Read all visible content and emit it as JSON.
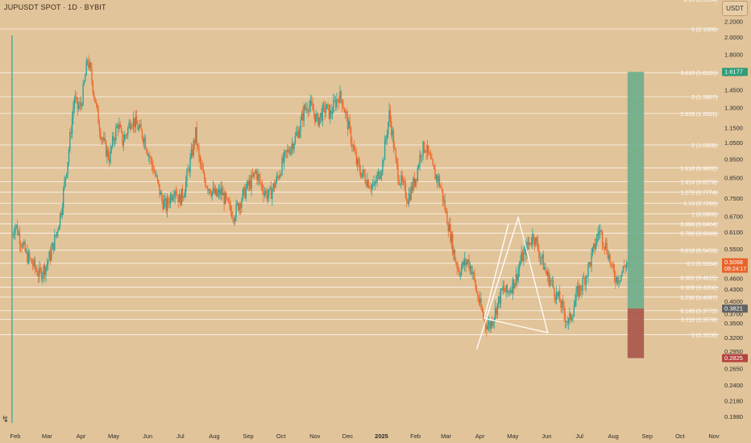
{
  "title": "JUPUSDT SPOT · 1D · BYBIT",
  "currency_button": "USDT",
  "chart_data": {
    "type": "candlestick",
    "title": "JUPUSDT SPOT · 1D · BYBIT",
    "y_scale": "log",
    "ylim": [
      0.185,
      2.6
    ],
    "price_ticks": [
      "2.2000",
      "2.0000",
      "1.8000",
      "1.6000",
      "1.4500",
      "1.3000",
      "1.1500",
      "1.0500",
      "0.9500",
      "0.8500",
      "0.7500",
      "0.6700",
      "0.6100",
      "0.5500",
      "0.5000",
      "0.4600",
      "0.4300",
      "0.4000",
      "0.3700",
      "0.3500",
      "0.3200",
      "0.2950",
      "0.2650",
      "0.2400",
      "0.2180",
      "0.1980"
    ],
    "time_ticks": [
      "Feb",
      "Mar",
      "Apr",
      "May",
      "Jun",
      "Jul",
      "Aug",
      "Sep",
      "Oct",
      "Nov",
      "Dec",
      "2025",
      "Feb",
      "Mar",
      "Apr",
      "May",
      "Jun",
      "Jul",
      "Aug",
      "Sep",
      "Oct",
      "Nov"
    ],
    "time_tick_days": [
      0,
      29,
      60,
      90,
      121,
      151,
      182,
      213,
      243,
      274,
      304,
      335,
      366,
      394,
      425,
      455,
      486,
      516,
      547,
      578,
      608,
      639
    ],
    "price_path": [
      [
        -3,
        0.6
      ],
      [
        0,
        0.64
      ],
      [
        4,
        0.59
      ],
      [
        10,
        0.53
      ],
      [
        16,
        0.5
      ],
      [
        22,
        0.47
      ],
      [
        28,
        0.495
      ],
      [
        33,
        0.54
      ],
      [
        38,
        0.61
      ],
      [
        42,
        0.7
      ],
      [
        45,
        0.82
      ],
      [
        48,
        0.95
      ],
      [
        51,
        1.15
      ],
      [
        54,
        1.38
      ],
      [
        57,
        1.3
      ],
      [
        60,
        1.32
      ],
      [
        63,
        1.5
      ],
      [
        66,
        1.75
      ],
      [
        69,
        1.6
      ],
      [
        72,
        1.42
      ],
      [
        75,
        1.25
      ],
      [
        78,
        1.12
      ],
      [
        82,
        1.02
      ],
      [
        86,
        0.96
      ],
      [
        90,
        1.08
      ],
      [
        94,
        1.18
      ],
      [
        98,
        1.06
      ],
      [
        102,
        1.12
      ],
      [
        106,
        1.22
      ],
      [
        110,
        1.18
      ],
      [
        114,
        1.13
      ],
      [
        118,
        1.08
      ],
      [
        122,
        0.98
      ],
      [
        126,
        0.9
      ],
      [
        130,
        0.82
      ],
      [
        134,
        0.74
      ],
      [
        138,
        0.71
      ],
      [
        142,
        0.76
      ],
      [
        146,
        0.8
      ],
      [
        150,
        0.74
      ],
      [
        154,
        0.78
      ],
      [
        158,
        0.88
      ],
      [
        162,
        1.0
      ],
      [
        165,
        1.11
      ],
      [
        168,
        0.95
      ],
      [
        172,
        0.85
      ],
      [
        176,
        0.81
      ],
      [
        180,
        0.78
      ],
      [
        184,
        0.76
      ],
      [
        188,
        0.78
      ],
      [
        192,
        0.74
      ],
      [
        196,
        0.7
      ],
      [
        200,
        0.68
      ],
      [
        204,
        0.72
      ],
      [
        208,
        0.76
      ],
      [
        212,
        0.8
      ],
      [
        216,
        0.83
      ],
      [
        220,
        0.88
      ],
      [
        224,
        0.82
      ],
      [
        228,
        0.78
      ],
      [
        232,
        0.76
      ],
      [
        236,
        0.8
      ],
      [
        240,
        0.85
      ],
      [
        244,
        0.92
      ],
      [
        248,
        0.98
      ],
      [
        252,
        1.03
      ],
      [
        256,
        1.08
      ],
      [
        260,
        1.15
      ],
      [
        264,
        1.28
      ],
      [
        268,
        1.33
      ],
      [
        272,
        1.28
      ],
      [
        276,
        1.2
      ],
      [
        280,
        1.25
      ],
      [
        284,
        1.3
      ],
      [
        288,
        1.25
      ],
      [
        292,
        1.33
      ],
      [
        296,
        1.4
      ],
      [
        299,
        1.36
      ],
      [
        302,
        1.25
      ],
      [
        305,
        1.15
      ],
      [
        308,
        1.05
      ],
      [
        312,
        0.93
      ],
      [
        316,
        0.88
      ],
      [
        320,
        0.85
      ],
      [
        324,
        0.82
      ],
      [
        328,
        0.8
      ],
      [
        332,
        0.86
      ],
      [
        336,
        0.93
      ],
      [
        339,
        1.08
      ],
      [
        342,
        1.25
      ],
      [
        345,
        1.1
      ],
      [
        348,
        0.93
      ],
      [
        351,
        0.85
      ],
      [
        355,
        0.8
      ],
      [
        359,
        0.75
      ],
      [
        363,
        0.8
      ],
      [
        367,
        0.87
      ],
      [
        371,
        1.0
      ],
      [
        375,
        1.03
      ],
      [
        379,
        0.95
      ],
      [
        383,
        0.87
      ],
      [
        387,
        0.84
      ],
      [
        390,
        0.78
      ],
      [
        394,
        0.68
      ],
      [
        398,
        0.6
      ],
      [
        402,
        0.52
      ],
      [
        406,
        0.48
      ],
      [
        410,
        0.5
      ],
      [
        414,
        0.51
      ],
      [
        418,
        0.48
      ],
      [
        422,
        0.42
      ],
      [
        426,
        0.38
      ],
      [
        430,
        0.35
      ],
      [
        434,
        0.345
      ],
      [
        438,
        0.37
      ],
      [
        442,
        0.4
      ],
      [
        446,
        0.43
      ],
      [
        450,
        0.42
      ],
      [
        454,
        0.44
      ],
      [
        458,
        0.46
      ],
      [
        462,
        0.51
      ],
      [
        466,
        0.54
      ],
      [
        470,
        0.57
      ],
      [
        474,
        0.6
      ],
      [
        478,
        0.55
      ],
      [
        482,
        0.51
      ],
      [
        486,
        0.47
      ],
      [
        490,
        0.45
      ],
      [
        494,
        0.42
      ],
      [
        498,
        0.4
      ],
      [
        502,
        0.37
      ],
      [
        506,
        0.35
      ],
      [
        510,
        0.38
      ],
      [
        514,
        0.42
      ],
      [
        518,
        0.44
      ],
      [
        522,
        0.47
      ],
      [
        526,
        0.51
      ],
      [
        530,
        0.56
      ],
      [
        534,
        0.62
      ],
      [
        538,
        0.58
      ],
      [
        542,
        0.54
      ],
      [
        546,
        0.48
      ],
      [
        550,
        0.46
      ],
      [
        554,
        0.47
      ],
      [
        558,
        0.5
      ],
      [
        562,
        0.5068
      ]
    ],
    "candle_seed": 7,
    "fib_levels": [
      {
        "label": "0 (0.3258)",
        "price": 0.3258
      },
      {
        "label": "0.118 (0.3578)",
        "price": 0.3578
      },
      {
        "label": "0.146 (0.3772)",
        "price": 0.3772
      },
      {
        "label": "0.236 (0.4097)",
        "price": 0.4097
      },
      {
        "label": "0.309 (0.4356)",
        "price": 0.4356
      },
      {
        "label": "0.382 (0.4615)",
        "price": 0.4615
      },
      {
        "label": "0.5 (0.5034)",
        "price": 0.5034
      },
      {
        "label": "0.618 (0.5453)",
        "price": 0.5453
      },
      {
        "label": "0.786 (0.6049)",
        "price": 0.6049
      },
      {
        "label": "0.886 (0.6404)",
        "price": 0.6404
      },
      {
        "label": "1 (0.6808)",
        "price": 0.6808
      },
      {
        "label": "1.13 (0.7266)",
        "price": 0.7266
      },
      {
        "label": "1.272 (0.7774)",
        "price": 0.7774
      },
      {
        "label": "1.414 (0.8278)",
        "price": 0.8278
      },
      {
        "label": "1.618 (0.9002)",
        "price": 0.9002
      },
      {
        "label": "2 (1.0358)",
        "price": 1.0358
      },
      {
        "label": "2.618 (1.2551)",
        "price": 1.2551
      },
      {
        "label": "3 (1.3907)",
        "price": 1.3907
      },
      {
        "label": "3.618 (1.6101)",
        "price": 1.6101
      },
      {
        "label": "5 (2.1006)",
        "price": 2.1006
      },
      {
        "label": "6.18 (2.5194)",
        "price": 2.5194
      }
    ],
    "position": {
      "start_day": 560,
      "end_day": 575,
      "entry": 0.3821,
      "target": 1.6177,
      "stop": 0.2825
    },
    "triangle_drawing": [
      [
        422,
        0.298
      ],
      [
        460,
        0.665
      ],
      [
        487,
        0.33
      ],
      [
        429,
        0.36
      ],
      [
        451,
        0.64
      ]
    ],
    "price_labels": [
      {
        "text": "1.6177",
        "price": 1.6177,
        "color": "#2e9d78"
      },
      {
        "text": "0.5068",
        "sub": "09:24:17",
        "price": 0.5068,
        "color": "#e8642a"
      },
      {
        "text": "0.3821",
        "price": 0.3821,
        "color": "#636363"
      },
      {
        "text": "0.2825",
        "price": 0.2825,
        "color": "#b5443f"
      }
    ],
    "colors": {
      "background": "#e2c49a",
      "up": "#26a69a",
      "down": "#ef6a2e",
      "grid_line": "#ffffff",
      "profit_zone": "#6fae8d",
      "loss_zone": "#a9584c",
      "drawing": "#ffffff"
    }
  }
}
